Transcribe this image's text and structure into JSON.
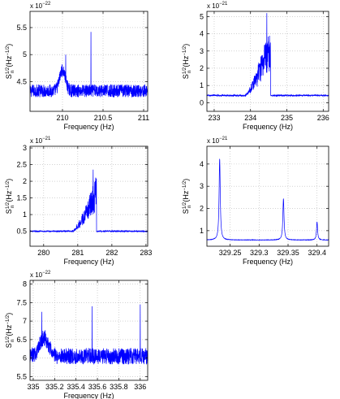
{
  "chart_data": [
    {
      "type": "line",
      "xlabel": "Frequency (Hz)",
      "ylabel_main": "S",
      "ylabel_sup": "1/2",
      "ylabel_sub": "n",
      "ylabel_unit": "(Hz",
      "ylabel_unit_sup": "−1/2",
      "ylabel_close": ")",
      "scale_base": "x 10",
      "scale_exp": "−22",
      "xlim": [
        209.6,
        211.05
      ],
      "ylim": [
        3.95,
        5.8
      ],
      "xticks": [
        210,
        210.5,
        211
      ],
      "xtick_labels": [
        "210",
        "210.5",
        "211"
      ],
      "yticks": [
        4.5,
        5,
        5.5
      ],
      "ytick_labels": [
        "4.5",
        "5",
        "5.5"
      ],
      "grid": true,
      "color": "#0000ff",
      "baseline": 4.33,
      "noise": 0.12,
      "features": [
        {
          "kind": "bump",
          "center": 210.0,
          "width": 0.05,
          "height": 0.38
        },
        {
          "kind": "spike",
          "x": 210.35,
          "y": 5.42
        },
        {
          "kind": "spike",
          "x": 210.04,
          "y": 5.0
        }
      ]
    },
    {
      "type": "line",
      "xlabel": "Frequency (Hz)",
      "ylabel_main": "S",
      "ylabel_sup": "1/2",
      "ylabel_sub": "n",
      "ylabel_unit": "(Hz",
      "ylabel_unit_sup": "−1/2",
      "ylabel_close": ")",
      "scale_base": "x 10",
      "scale_exp": "−21",
      "xlim": [
        232.8,
        236.15
      ],
      "ylim": [
        -0.5,
        5.3
      ],
      "xticks": [
        233,
        234,
        235,
        236
      ],
      "xtick_labels": [
        "233",
        "234",
        "235",
        "236"
      ],
      "yticks": [
        0,
        1,
        2,
        3,
        4,
        5
      ],
      "ytick_labels": [
        "0",
        "1",
        "2",
        "3",
        "4",
        "5"
      ],
      "grid": true,
      "color": "#0000ff",
      "baseline": 0.42,
      "noise": 0.04,
      "features": [
        {
          "kind": "band",
          "start": 233.85,
          "end": 234.55,
          "peak": 4.6,
          "shape": "ramp"
        },
        {
          "kind": "spike",
          "x": 234.45,
          "y": 5.2
        }
      ]
    },
    {
      "type": "line",
      "xlabel": "Frequency (Hz)",
      "ylabel_main": "S",
      "ylabel_sup": "1/2",
      "ylabel_sub": "n",
      "ylabel_unit": "(Hz",
      "ylabel_unit_sup": "−1/2",
      "ylabel_close": ")",
      "scale_base": "x 10",
      "scale_exp": "−21",
      "xlim": [
        279.6,
        283.05
      ],
      "ylim": [
        0.05,
        3.05
      ],
      "xticks": [
        280,
        281,
        282,
        283
      ],
      "xtick_labels": [
        "280",
        "281",
        "282",
        "283"
      ],
      "yticks": [
        0.5,
        1,
        1.5,
        2,
        2.5,
        3
      ],
      "ytick_labels": [
        "0.5",
        "1",
        "1.5",
        "2",
        "2.5",
        "3"
      ],
      "grid": true,
      "color": "#0000ff",
      "baseline": 0.5,
      "noise": 0.02,
      "features": [
        {
          "kind": "band",
          "start": 280.85,
          "end": 281.55,
          "peak": 2.2,
          "shape": "ramp"
        },
        {
          "kind": "spike",
          "x": 281.45,
          "y": 2.35
        }
      ]
    },
    {
      "type": "line",
      "xlabel": "Frequency (Hz)",
      "ylabel_main": "S",
      "ylabel_sup": "1/2",
      "ylabel_sub": "n",
      "ylabel_unit": "(Hz",
      "ylabel_unit_sup": "−1/2",
      "ylabel_close": ")",
      "scale_base": "x 10",
      "scale_exp": "−21",
      "xlim": [
        329.21,
        329.42
      ],
      "ylim": [
        0.3,
        4.8
      ],
      "xticks": [
        329.25,
        329.3,
        329.35,
        329.4
      ],
      "xtick_labels": [
        "329.25",
        "329.3",
        "329.35",
        "329.4"
      ],
      "yticks": [
        1,
        2,
        3,
        4
      ],
      "ytick_labels": [
        "1",
        "2",
        "3",
        "4"
      ],
      "grid": true,
      "color": "#0000ff",
      "baseline": 0.58,
      "noise": 0.01,
      "features": [
        {
          "kind": "peak",
          "center": 329.232,
          "width": 0.0012,
          "height": 4.25
        },
        {
          "kind": "peak",
          "center": 329.342,
          "width": 0.0012,
          "height": 2.45
        },
        {
          "kind": "peak",
          "center": 329.4,
          "width": 0.0011,
          "height": 1.4
        }
      ]
    },
    {
      "type": "line",
      "xlabel": "Frequency (Hz)",
      "ylabel_main": "S",
      "ylabel_sup": "1/2",
      "ylabel_sub": "n",
      "ylabel_unit": "(Hz",
      "ylabel_unit_sup": "−1/2",
      "ylabel_close": ")",
      "scale_base": "x 10",
      "scale_exp": "−22",
      "xlim": [
        334.97,
        336.07
      ],
      "ylim": [
        5.4,
        8.1
      ],
      "xticks": [
        335,
        335.2,
        335.4,
        335.6,
        335.8,
        336
      ],
      "xtick_labels": [
        "335",
        "335.2",
        "335.4",
        "335.6",
        "335.8",
        "336"
      ],
      "yticks": [
        5.5,
        6,
        6.5,
        7,
        7.5,
        8
      ],
      "ytick_labels": [
        "5.5",
        "6",
        "6.5",
        "7",
        "7.5",
        "8"
      ],
      "grid": true,
      "color": "#0000ff",
      "baseline": 6.05,
      "noise": 0.22,
      "features": [
        {
          "kind": "bump",
          "center": 335.1,
          "width": 0.06,
          "height": 0.5
        },
        {
          "kind": "spike",
          "x": 335.08,
          "y": 7.25
        },
        {
          "kind": "spike",
          "x": 335.55,
          "y": 7.4
        },
        {
          "kind": "spike",
          "x": 336.0,
          "y": 7.45
        }
      ]
    }
  ]
}
